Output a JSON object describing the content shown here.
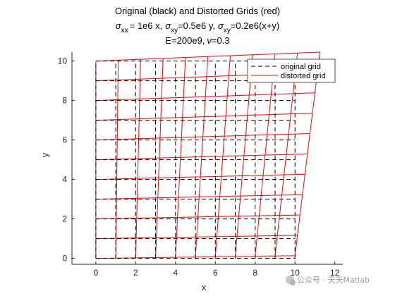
{
  "chart_data": {
    "type": "line",
    "title_line1": "Original (black) and Distorted Grids (red)",
    "title_line2": {
      "sigma_xx": "= 1e6 x,",
      "sigma_xy": "=0.5e6 y,",
      "sigma_xy_2": "=0.2e6(x+y)",
      "sub_xx": "xx",
      "sub_xy": "xy"
    },
    "title_line3_prefix": "E=200e9,",
    "title_line3_suffix": "=0.3",
    "greek_sigma": "σ",
    "greek_nu": "ν",
    "xlabel": "x",
    "ylabel": "y",
    "xlim": [
      -1.2,
      12.4
    ],
    "ylim": [
      -0.3,
      10.45
    ],
    "xticks": [
      0,
      2,
      4,
      6,
      8,
      10,
      12
    ],
    "yticks": [
      0,
      2,
      4,
      6,
      8,
      10
    ],
    "grid": false,
    "legend_location": "top-right",
    "series": [
      {
        "name": "original grid",
        "color": "#000000",
        "style": "dashed",
        "grid_x": [
          0,
          1,
          2,
          3,
          4,
          5,
          6,
          7,
          8,
          9,
          10
        ],
        "grid_y": [
          0,
          1,
          2,
          3,
          4,
          5,
          6,
          7,
          8,
          9,
          10
        ]
      },
      {
        "name": "distorted grid",
        "color": "#ff0000",
        "style": "solid",
        "grid_x": [
          0,
          1,
          2,
          3,
          4,
          5,
          6,
          7,
          8,
          9,
          10
        ],
        "grid_y": [
          0,
          1,
          2,
          3,
          4,
          5,
          6,
          7,
          8,
          9,
          10
        ],
        "displacement_x_at_corner_10_10": 1.25,
        "displacement_y_at_corner_10_10": 0.45
      }
    ]
  },
  "watermark": "公众号 · 天天Matlab"
}
